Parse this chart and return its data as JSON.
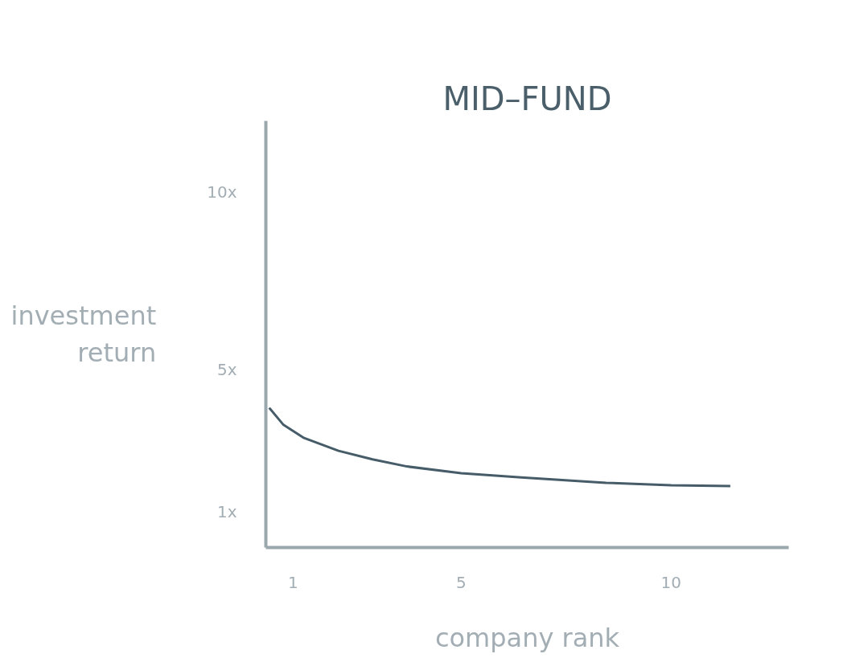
{
  "chart_data": {
    "type": "line",
    "title": "MID–FUND",
    "xlabel": "company rank",
    "ylabel": "investment return",
    "x": [
      0.43,
      0.77,
      1.26,
      2.08,
      2.89,
      3.71,
      5,
      6.43,
      8.45,
      10,
      11.41
    ],
    "series": [
      {
        "color": "#465c68",
        "values": [
          3.93,
          3.45,
          3.08,
          2.72,
          2.48,
          2.28,
          2.09,
          1.97,
          1.82,
          1.75,
          1.73
        ]
      }
    ],
    "xlim": [
      0.35,
      12.8
    ],
    "ylim": [
      0,
      12
    ],
    "xticks": [
      1,
      5,
      10
    ],
    "yticks": [
      {
        "value": 1,
        "label": "1x"
      },
      {
        "value": 5,
        "label": "5x"
      },
      {
        "value": 10,
        "label": "10x"
      }
    ],
    "grid": false,
    "marker": "none",
    "line_style": "solid"
  }
}
